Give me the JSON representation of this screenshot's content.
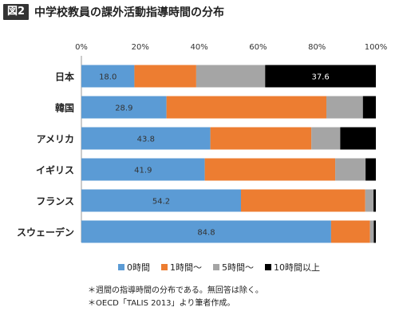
{
  "header": {
    "badge": "図2",
    "title": "中学校教員の課外活動指導時間の分布"
  },
  "chart_data": {
    "type": "bar",
    "orientation": "horizontal",
    "stacked": true,
    "categories": [
      "日本",
      "韓国",
      "アメリカ",
      "イギリス",
      "フランス",
      "スウェーデン"
    ],
    "series": [
      {
        "name": "0時間",
        "color": "#5b9bd5",
        "values": [
          18.0,
          28.9,
          43.8,
          41.9,
          54.2,
          84.8
        ]
      },
      {
        "name": "1時間〜",
        "color": "#ed7d31",
        "values": [
          21.0,
          54.3,
          34.3,
          44.3,
          42.2,
          13.2
        ]
      },
      {
        "name": "5時間〜",
        "color": "#a5a5a5",
        "values": [
          23.4,
          12.4,
          9.8,
          10.3,
          2.8,
          1.3
        ]
      },
      {
        "name": "10時間以上",
        "color": "#000000",
        "values": [
          37.6,
          4.4,
          12.1,
          3.5,
          0.8,
          0.7
        ]
      }
    ],
    "data_labels": [
      {
        "category": "日本",
        "series": "0時間",
        "text": "18.0"
      },
      {
        "category": "日本",
        "series": "10時間以上",
        "text": "37.6"
      },
      {
        "category": "韓国",
        "series": "0時間",
        "text": "28.9"
      },
      {
        "category": "アメリカ",
        "series": "0時間",
        "text": "43.8"
      },
      {
        "category": "イギリス",
        "series": "0時間",
        "text": "41.9"
      },
      {
        "category": "フランス",
        "series": "0時間",
        "text": "54.2"
      },
      {
        "category": "スウェーデン",
        "series": "0時間",
        "text": "84.8"
      }
    ],
    "xlim": [
      0,
      100
    ],
    "xticks": [
      "0%",
      "20%",
      "40%",
      "60%",
      "80%",
      "100%"
    ],
    "legend_position": "bottom",
    "grid": false
  },
  "notes": [
    "＊週間の指導時間の分布である。無回答は除く。",
    "＊OECD「TALIS 2013」より筆者作成。"
  ]
}
